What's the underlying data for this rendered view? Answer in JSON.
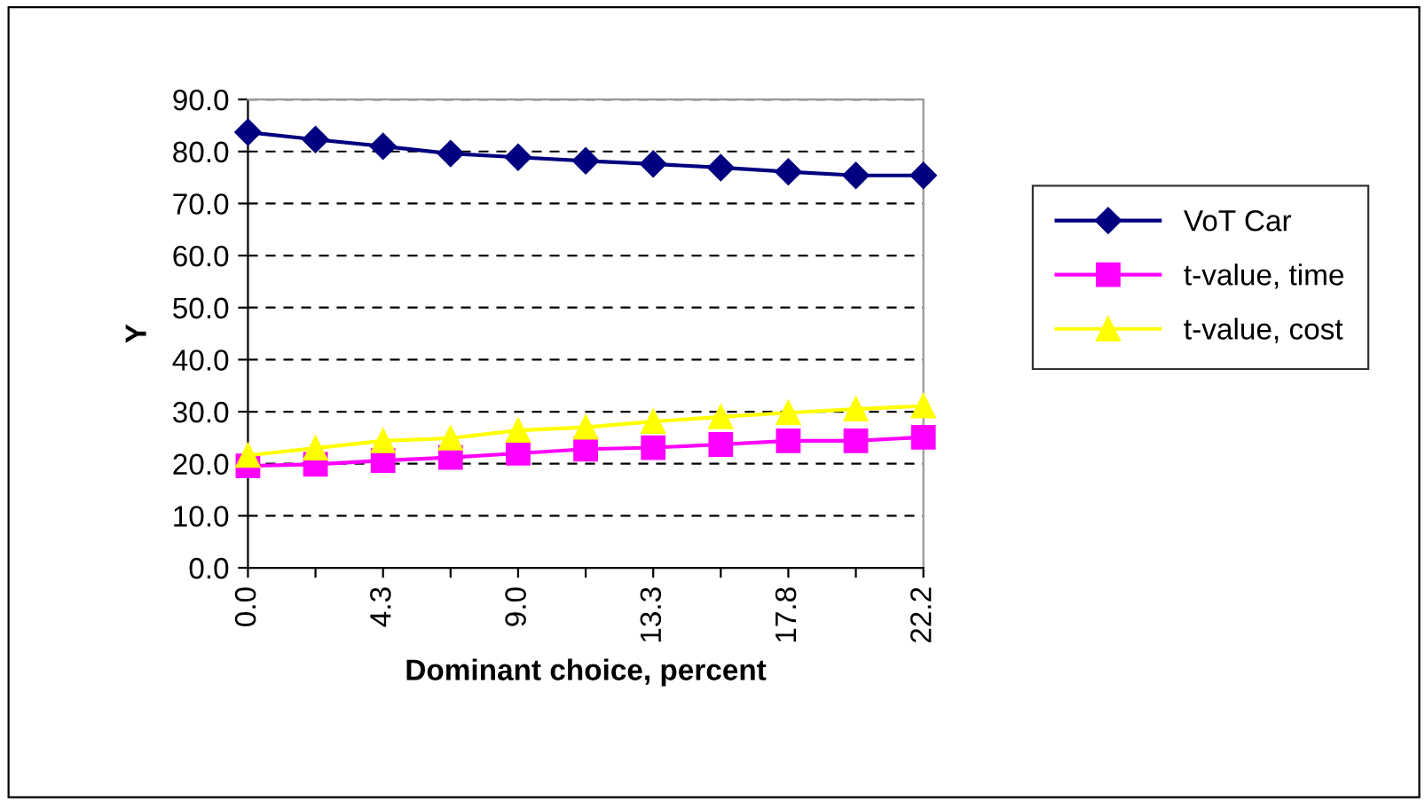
{
  "chart_data": {
    "type": "line",
    "xlabel": "Dominant choice, percent",
    "ylabel": "Y",
    "categories": [
      "0.0",
      null,
      "4.3",
      null,
      "9.0",
      null,
      "13.3",
      null,
      "17.8",
      null,
      "22.2"
    ],
    "series": [
      {
        "name": "VoT Car",
        "color": "#000080",
        "marker": "diamond",
        "values": [
          83.7,
          82.3,
          81.0,
          79.6,
          78.9,
          78.2,
          77.6,
          76.9,
          76.1,
          75.4,
          75.4
        ]
      },
      {
        "name": "t-value, time",
        "color": "#ff00ff",
        "marker": "square",
        "values": [
          19.6,
          19.9,
          20.6,
          21.2,
          22.0,
          22.8,
          23.1,
          23.7,
          24.4,
          24.4,
          25.1
        ]
      },
      {
        "name": "t-value, cost",
        "color": "#ffff00",
        "marker": "triangle",
        "values": [
          21.6,
          23.0,
          24.4,
          24.9,
          26.4,
          27.0,
          28.1,
          29.0,
          29.8,
          30.5,
          31.1
        ]
      }
    ],
    "ylim": [
      0,
      90
    ],
    "yticks": [
      {
        "value": 0,
        "label": "0.0"
      },
      {
        "value": 10,
        "label": "10.0"
      },
      {
        "value": 20,
        "label": "20.0"
      },
      {
        "value": 30,
        "label": "30.0"
      },
      {
        "value": 40,
        "label": "40.0"
      },
      {
        "value": 50,
        "label": "50.0"
      },
      {
        "value": 60,
        "label": "60.0"
      },
      {
        "value": 70,
        "label": "70.0"
      },
      {
        "value": 80,
        "label": "80.0"
      },
      {
        "value": 90,
        "label": "90.0"
      }
    ],
    "grid": "y",
    "line_style": "solid",
    "legend": "right"
  }
}
